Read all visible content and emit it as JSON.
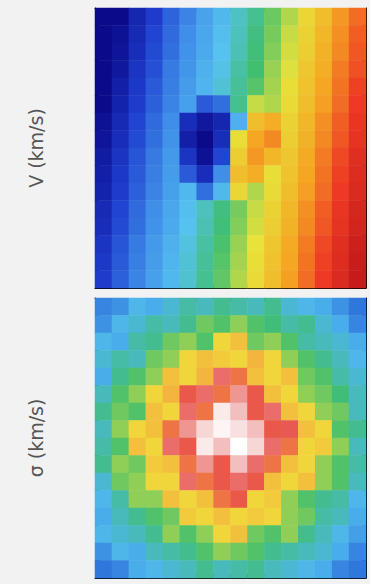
{
  "chart_data": [
    {
      "type": "heatmap",
      "ylabel": "V (km/s)",
      "tick_labels": false,
      "color_range": [
        -300,
        300
      ],
      "cells": [
        [
          -330,
          -300,
          -260,
          -230,
          -190,
          -160,
          -120,
          -90,
          -50,
          -20,
          20,
          50,
          90,
          120,
          160,
          190
        ],
        [
          -325,
          -290,
          -255,
          -220,
          -185,
          -150,
          -115,
          -80,
          -45,
          -10,
          25,
          60,
          95,
          130,
          165,
          200
        ],
        [
          -320,
          -285,
          -250,
          -215,
          -180,
          -145,
          -110,
          -75,
          -40,
          -5,
          30,
          65,
          100,
          135,
          170,
          205
        ],
        [
          -310,
          -280,
          -240,
          -210,
          -170,
          -140,
          -100,
          -70,
          -30,
          0,
          40,
          70,
          110,
          140,
          180,
          210
        ],
        [
          -305,
          -270,
          -235,
          -200,
          -165,
          -130,
          -95,
          -60,
          -25,
          10,
          45,
          80,
          115,
          150,
          185,
          220
        ],
        [
          -300,
          -265,
          -230,
          -195,
          -160,
          -125,
          -200,
          -180,
          -20,
          60,
          50,
          85,
          120,
          155,
          190,
          225
        ],
        [
          -290,
          -255,
          -220,
          -185,
          -150,
          -250,
          -280,
          -260,
          -100,
          120,
          140,
          95,
          130,
          165,
          200,
          235
        ],
        [
          -285,
          -250,
          -215,
          -180,
          -145,
          -270,
          -300,
          -250,
          80,
          150,
          170,
          100,
          135,
          170,
          205,
          240
        ],
        [
          -275,
          -240,
          -205,
          -170,
          -135,
          -240,
          -290,
          -220,
          100,
          160,
          130,
          110,
          145,
          180,
          215,
          250
        ],
        [
          -270,
          -235,
          -200,
          -165,
          -130,
          -200,
          -250,
          -150,
          120,
          140,
          80,
          115,
          150,
          185,
          220,
          255
        ],
        [
          -265,
          -230,
          -195,
          -160,
          -125,
          -90,
          -180,
          -90,
          90,
          50,
          85,
          120,
          155,
          190,
          225,
          260
        ],
        [
          -255,
          -220,
          -185,
          -150,
          -115,
          -80,
          -45,
          -10,
          25,
          60,
          95,
          130,
          165,
          200,
          235,
          270
        ],
        [
          -250,
          -215,
          -180,
          -145,
          -110,
          -75,
          -40,
          -5,
          30,
          65,
          100,
          135,
          170,
          205,
          240,
          275
        ],
        [
          -240,
          -205,
          -170,
          -135,
          -100,
          -65,
          -30,
          5,
          40,
          75,
          110,
          145,
          180,
          215,
          250,
          285
        ],
        [
          -235,
          -200,
          -165,
          -130,
          -95,
          -60,
          -25,
          10,
          45,
          80,
          115,
          150,
          185,
          220,
          255,
          290
        ],
        [
          -230,
          -195,
          -160,
          -125,
          -90,
          -55,
          -20,
          15,
          50,
          85,
          120,
          155,
          190,
          225,
          260,
          295
        ]
      ]
    },
    {
      "type": "heatmap",
      "ylabel": "σ (km/s)",
      "tick_labels": false,
      "color_range": [
        60,
        260
      ],
      "cells": [
        [
          70,
          75,
          90,
          85,
          95,
          105,
          100,
          110,
          105,
          100,
          110,
          95,
          90,
          85,
          75,
          65
        ],
        [
          75,
          90,
          95,
          105,
          100,
          110,
          125,
          120,
          130,
          120,
          115,
          105,
          110,
          95,
          85,
          70
        ],
        [
          90,
          85,
          105,
          110,
          125,
          130,
          120,
          150,
          160,
          125,
          130,
          120,
          105,
          100,
          95,
          85
        ],
        [
          95,
          105,
          100,
          125,
          130,
          150,
          160,
          155,
          150,
          165,
          150,
          130,
          120,
          110,
          100,
          90
        ],
        [
          85,
          110,
          120,
          130,
          160,
          150,
          165,
          210,
          190,
          160,
          150,
          160,
          125,
          120,
          105,
          95
        ],
        [
          100,
          120,
          130,
          150,
          165,
          200,
          210,
          190,
          220,
          200,
          160,
          150,
          130,
          125,
          115,
          100
        ],
        [
          110,
          125,
          120,
          160,
          150,
          210,
          190,
          250,
          230,
          200,
          210,
          160,
          150,
          130,
          125,
          100
        ],
        [
          100,
          130,
          150,
          160,
          190,
          220,
          240,
          255,
          245,
          230,
          200,
          205,
          160,
          150,
          120,
          110
        ],
        [
          105,
          120,
          160,
          150,
          210,
          200,
          250,
          230,
          260,
          240,
          210,
          190,
          150,
          155,
          130,
          100
        ],
        [
          110,
          130,
          125,
          155,
          160,
          190,
          220,
          200,
          230,
          210,
          190,
          160,
          150,
          130,
          120,
          105
        ],
        [
          95,
          125,
          130,
          150,
          150,
          210,
          190,
          200,
          210,
          200,
          160,
          150,
          160,
          130,
          120,
          100
        ],
        [
          90,
          105,
          130,
          130,
          160,
          150,
          160,
          190,
          200,
          150,
          155,
          130,
          120,
          110,
          105,
          90
        ],
        [
          85,
          100,
          110,
          120,
          125,
          155,
          150,
          160,
          150,
          155,
          150,
          130,
          125,
          105,
          100,
          85
        ],
        [
          90,
          95,
          100,
          110,
          130,
          120,
          130,
          150,
          160,
          125,
          120,
          130,
          110,
          100,
          90,
          80
        ],
        [
          75,
          90,
          85,
          100,
          105,
          110,
          120,
          130,
          125,
          120,
          110,
          105,
          100,
          95,
          85,
          70
        ],
        [
          65,
          70,
          85,
          90,
          95,
          100,
          110,
          100,
          105,
          110,
          100,
          95,
          90,
          85,
          70,
          65
        ]
      ]
    }
  ]
}
